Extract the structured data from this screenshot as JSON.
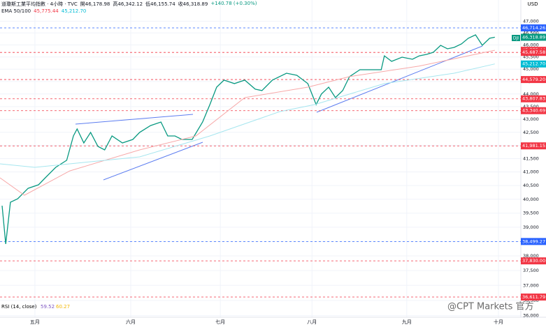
{
  "header": {
    "title": "道瓊斯工業平均指數 · 4小時 · TVC",
    "ohlc": [
      "開46,178.98",
      "高46,342.12",
      "低46,155.74",
      "收46,318.89"
    ],
    "change": "+140.78 (+0.30%)",
    "indicator": "EMA 50/100",
    "indicator_values": [
      "45,775.44",
      "45,212.70"
    ],
    "rsi": "RSI (14, close)",
    "rsi_values": [
      "59.52",
      "60.27"
    ],
    "currency": "USD",
    "symbol_tag": "DJI",
    "watermark": "@CPT Markets 官方"
  },
  "chart_data": {
    "type": "line",
    "log_scale": true,
    "grid": true,
    "xlim": [
      0,
      100
    ],
    "xticks": [
      {
        "value": 6.7,
        "label": "五月"
      },
      {
        "value": 25.1,
        "label": "六月"
      },
      {
        "value": 42.3,
        "label": "七月"
      },
      {
        "value": 59.9,
        "label": "八月"
      },
      {
        "value": 78.1,
        "label": "九月"
      },
      {
        "value": 95.7,
        "label": "十月"
      }
    ],
    "ylim": [
      35948,
      47908
    ],
    "yticks": [
      {
        "value": 36000,
        "label": "36,000"
      },
      {
        "value": 36500,
        "label": "36,500"
      },
      {
        "value": 37000,
        "label": "37,000"
      },
      {
        "value": 37500,
        "label": "37,500"
      },
      {
        "value": 38000,
        "label": "38,000"
      },
      {
        "value": 38500,
        "label": "38,500"
      },
      {
        "value": 39000,
        "label": "39,000"
      },
      {
        "value": 39500,
        "label": "39,500"
      },
      {
        "value": 40000,
        "label": "40,000"
      },
      {
        "value": 40500,
        "label": "40,500"
      },
      {
        "value": 41000,
        "label": "41,000"
      },
      {
        "value": 41500,
        "label": "41,500"
      },
      {
        "value": 42000,
        "label": "42,000"
      },
      {
        "value": 42500,
        "label": "42,500"
      },
      {
        "value": 43000,
        "label": "43,000"
      },
      {
        "value": 43500,
        "label": "43,500"
      },
      {
        "value": 44000,
        "label": "44,000"
      },
      {
        "value": 44500,
        "label": "44,500"
      },
      {
        "value": 45000,
        "label": "45,000"
      },
      {
        "value": 45500,
        "label": "45,500"
      },
      {
        "value": 46000,
        "label": "46,000"
      },
      {
        "value": 46500,
        "label": "46,500"
      },
      {
        "value": 47000,
        "label": "47,000"
      }
    ],
    "series": [
      {
        "color": "#089981",
        "x": [
          0.4,
          1.1,
          2,
          3.4,
          5.4,
          7.4,
          8.7,
          10.7,
          12.8,
          14.1,
          14.8,
          16.1,
          17.4,
          18.8,
          20.1,
          21.5,
          23.5,
          25.5,
          26.8,
          28.9,
          30.9,
          32.2,
          33.6,
          34.9,
          36.9,
          38.9,
          40.3,
          41.6,
          43,
          45,
          47,
          49,
          50.3,
          52.3,
          55,
          57,
          59.1,
          60.7,
          61.7,
          63.1,
          64.4,
          65.8,
          67.1,
          69.1,
          71.1,
          73.2,
          73.8,
          75.2,
          77.2,
          79.2,
          80.5,
          81.9,
          83.2,
          84.6,
          85.9,
          87.2,
          88.6,
          89.9,
          91.3,
          92.6,
          94,
          95
        ],
        "values": [
          39768,
          38414,
          39894,
          40018,
          40398,
          40528,
          40786,
          41173,
          41436,
          42360,
          42627,
          42094,
          42496,
          41960,
          41827,
          42360,
          42094,
          42226,
          42496,
          42761,
          42899,
          42360,
          42360,
          42226,
          42226,
          42899,
          43580,
          44272,
          44556,
          44416,
          44556,
          44191,
          44137,
          44556,
          44836,
          44751,
          44416,
          43580,
          43996,
          44272,
          43855,
          44137,
          44697,
          44977,
          44977,
          44977,
          45546,
          45318,
          45490,
          45406,
          45546,
          45607,
          45692,
          45981,
          45837,
          45894,
          46041,
          46275,
          46420,
          45981,
          46275,
          46318.89
        ]
      },
      {
        "color": "#f7a8a8",
        "x": [
          0,
          4.7,
          13.4,
          26.8,
          37.6,
          47,
          59.1,
          67.1,
          80.5,
          95
        ],
        "values": [
          40786,
          40147,
          41040,
          41827,
          42360,
          43855,
          44272,
          44697,
          45127,
          45775.44
        ]
      },
      {
        "color": "#a6e6ef",
        "x": [
          0,
          6.7,
          13.4,
          26.8,
          40.3,
          53.7,
          60.4,
          73.8,
          87.2,
          95
        ],
        "values": [
          41304,
          41173,
          41304,
          41566,
          42360,
          43304,
          43580,
          44416,
          44836,
          45212.7
        ]
      }
    ],
    "levels": [
      {
        "value": 46714.26,
        "label": "46,714.26",
        "color": "#2962ff",
        "line": true
      },
      {
        "value": 46318.89,
        "label": "46,318.89",
        "color": "#089981",
        "line": false
      },
      {
        "value": 45775.44,
        "label": "45,775.44",
        "color": "#f23645",
        "line": false
      },
      {
        "value": 45687.58,
        "label": "45,687.58",
        "color": "#f23645",
        "line": true
      },
      {
        "value": 45212.7,
        "label": "45,212.70",
        "color": "#00bcd4",
        "line": false
      },
      {
        "value": 44579.2,
        "label": "44,579.20",
        "color": "#f23645",
        "line": true
      },
      {
        "value": 43807.83,
        "label": "43,807.83",
        "color": "#f23645",
        "line": true
      },
      {
        "value": 43340.69,
        "label": "43,340.69",
        "color": "#f23645",
        "line": true
      },
      {
        "value": 41981.15,
        "label": "41,981.15",
        "color": "#f23645",
        "line": true
      },
      {
        "value": 38499.27,
        "label": "38,499.27",
        "color": "#2962ff",
        "line": true
      },
      {
        "value": 37830,
        "label": "37,830.00",
        "color": "#f23645",
        "line": true
      },
      {
        "value": 36611.79,
        "label": "36,611.79",
        "color": "#f23645",
        "line": true
      }
    ]
  }
}
